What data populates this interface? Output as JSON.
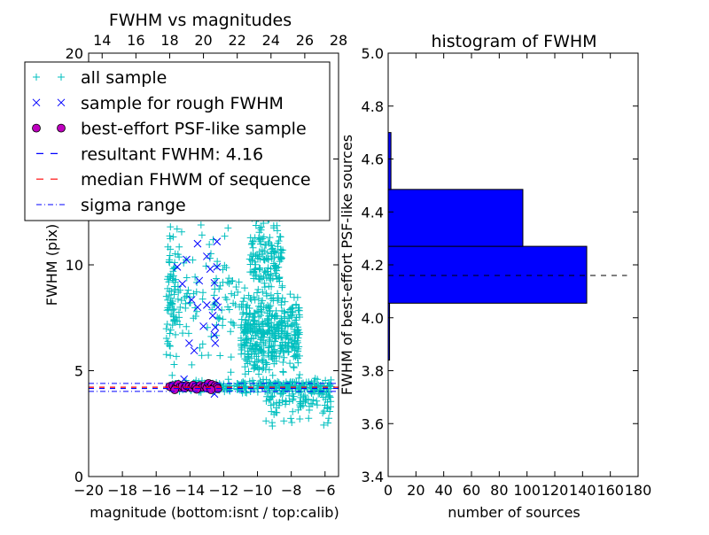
{
  "chart_data": [
    {
      "type": "scatter",
      "title": "FWHM vs magnitudes",
      "xlabel": "magnitude (bottom:isnt / top:calib)",
      "ylabel": "FWHM (pix)",
      "xlim": [
        -20,
        -5.2
      ],
      "ylim": [
        0,
        20
      ],
      "xticks": [
        -20,
        -18,
        -16,
        -14,
        -12,
        -10,
        -8,
        -6
      ],
      "xtick_labels": [
        "−20",
        "−18",
        "−16",
        "−14",
        "−12",
        "−10",
        "−8",
        "−6"
      ],
      "top_xticks": [
        14,
        16,
        18,
        20,
        22,
        24,
        26,
        28
      ],
      "top_xtick_labels": [
        "14",
        "16",
        "18",
        "20",
        "22",
        "24",
        "26",
        "28"
      ],
      "calib_offset": 33.2,
      "yticks": [
        0,
        5,
        10,
        15,
        20
      ],
      "ytick_labels": [
        "0",
        "5",
        "10",
        "15",
        "20"
      ],
      "legend": {
        "placement": "upper-left",
        "entries": [
          {
            "label": "all sample",
            "marker": "plus",
            "color": "#00bfbf"
          },
          {
            "label": "sample for rough FWHM",
            "marker": "x",
            "color": "#0000ff"
          },
          {
            "label": "best-effort PSF-like sample",
            "marker": "circle",
            "color": "#bf00bf"
          },
          {
            "label": "resultant FWHM: 4.16",
            "marker": "dashed",
            "color": "#0000ff"
          },
          {
            "label": "median FHWM of sequence",
            "marker": "dashed",
            "color": "#ff0000"
          },
          {
            "label": "sigma range",
            "marker": "dashdot",
            "color": "#0000ff"
          }
        ]
      },
      "hlines": {
        "resultant_fwhm": 4.16,
        "median_fwhm": 4.22,
        "sigma_range": [
          4.02,
          4.4
        ]
      },
      "series_all_sample_clusters": [
        {
          "mag": [
            -15.4,
            -14.8
          ],
          "fwhm": [
            4.4,
            12.0
          ],
          "n": 70
        },
        {
          "mag": [
            -15.2,
            -5.6
          ],
          "fwhm": [
            3.9,
            4.6
          ],
          "n": 260
        },
        {
          "mag": [
            -11.0,
            -7.5
          ],
          "fwhm": [
            4.5,
            9.0
          ],
          "n": 420
        },
        {
          "mag": [
            -10.5,
            -8.5
          ],
          "fwhm": [
            8.0,
            13.0
          ],
          "n": 160
        },
        {
          "mag": [
            -15.0,
            -11.0
          ],
          "fwhm": [
            4.5,
            12.5
          ],
          "n": 110
        },
        {
          "mag": [
            -9.5,
            -5.5
          ],
          "fwhm": [
            2.3,
            5.0
          ],
          "n": 120
        },
        {
          "mag": [
            -15.0,
            -8.0
          ],
          "fwhm": [
            12.5,
            20.0
          ],
          "n": 25
        }
      ],
      "series_rough_sample": [
        [
          -13.55,
          11.0
        ],
        [
          -12.4,
          11.1
        ],
        [
          -14.2,
          10.25
        ],
        [
          -13.0,
          10.4
        ],
        [
          -14.75,
          9.9
        ],
        [
          -12.4,
          9.9
        ],
        [
          -12.8,
          9.8
        ],
        [
          -14.45,
          9.1
        ],
        [
          -13.45,
          9.25
        ],
        [
          -12.55,
          9.15
        ],
        [
          -13.9,
          8.35
        ],
        [
          -13.0,
          8.1
        ],
        [
          -13.55,
          8.0
        ],
        [
          -12.45,
          8.3
        ],
        [
          -12.35,
          8.0
        ],
        [
          -12.65,
          7.6
        ],
        [
          -13.2,
          7.1
        ],
        [
          -12.5,
          7.05
        ],
        [
          -12.55,
          6.7
        ],
        [
          -12.5,
          6.3
        ],
        [
          -14.05,
          6.3
        ],
        [
          -13.75,
          5.95
        ],
        [
          -14.35,
          4.6
        ],
        [
          -12.55,
          3.9
        ],
        [
          -15.0,
          4.3
        ],
        [
          -14.2,
          4.25
        ],
        [
          -13.5,
          4.2
        ],
        [
          -12.9,
          4.35
        ]
      ],
      "series_psf_like": [
        [
          -15.2,
          4.25
        ],
        [
          -15.0,
          4.3
        ],
        [
          -14.85,
          4.2
        ],
        [
          -14.7,
          4.35
        ],
        [
          -14.6,
          4.22
        ],
        [
          -14.45,
          4.28
        ],
        [
          -14.3,
          4.18
        ],
        [
          -14.2,
          4.3
        ],
        [
          -14.05,
          4.25
        ],
        [
          -13.9,
          4.2
        ],
        [
          -13.8,
          4.32
        ],
        [
          -13.65,
          4.24
        ],
        [
          -13.5,
          4.19
        ],
        [
          -13.4,
          4.3
        ],
        [
          -13.25,
          4.22
        ],
        [
          -13.1,
          4.28
        ],
        [
          -13.0,
          4.18
        ],
        [
          -12.9,
          4.4
        ],
        [
          -12.8,
          4.25
        ],
        [
          -12.7,
          4.35
        ],
        [
          -12.6,
          4.2
        ],
        [
          -12.5,
          4.3
        ],
        [
          -12.4,
          4.24
        ],
        [
          -12.35,
          4.15
        ],
        [
          -13.6,
          4.12
        ],
        [
          -14.9,
          4.1
        ],
        [
          -12.75,
          4.1
        ]
      ]
    },
    {
      "type": "bar",
      "orientation": "horizontal",
      "title": "histogram of FWHM",
      "xlabel": "number of sources",
      "ylabel": "FWHM of best-effort PSF-like sources",
      "xlim": [
        0,
        180
      ],
      "ylim": [
        3.4,
        5.0
      ],
      "xticks": [
        0,
        20,
        40,
        60,
        80,
        100,
        120,
        140,
        160,
        180
      ],
      "xtick_labels": [
        "0",
        "20",
        "40",
        "60",
        "80",
        "100",
        "120",
        "140",
        "160",
        "180"
      ],
      "yticks": [
        3.4,
        3.6,
        3.8,
        4.0,
        4.2,
        4.4,
        4.6,
        4.8,
        5.0
      ],
      "ytick_labels": [
        "3.4",
        "3.6",
        "3.8",
        "4.0",
        "4.2",
        "4.4",
        "4.6",
        "4.8",
        "5.0"
      ],
      "bins": [
        {
          "from": 3.84,
          "to": 4.055,
          "count": 1
        },
        {
          "from": 4.055,
          "to": 4.27,
          "count": 143
        },
        {
          "from": 4.27,
          "to": 4.485,
          "count": 97
        },
        {
          "from": 4.485,
          "to": 4.7,
          "count": 2
        },
        {
          "from": 4.7,
          "to": 4.915,
          "count": 0
        }
      ],
      "bar_color": "#0000ff",
      "hline": {
        "value": 4.16,
        "xmax": 172,
        "style": "dashed",
        "color": "#000000"
      }
    }
  ]
}
